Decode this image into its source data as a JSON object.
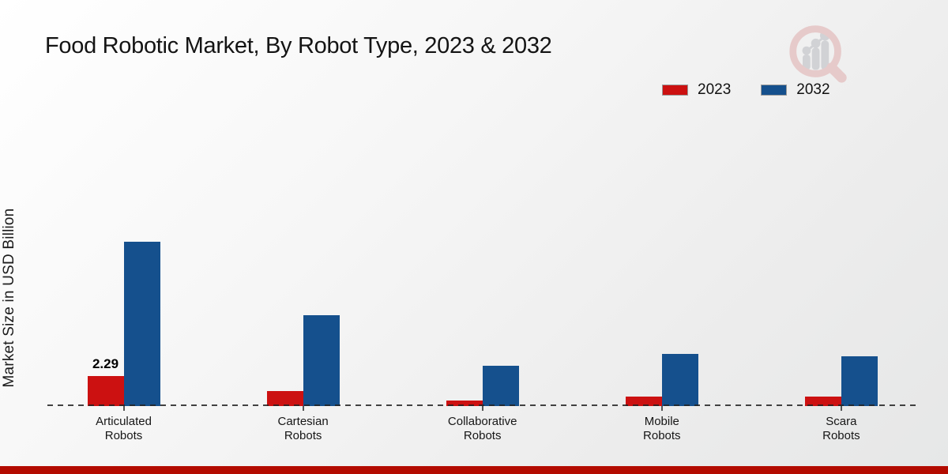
{
  "page": {
    "title": "Food Robotic Market, By Robot Type, 2023 & 2032",
    "ylabel": "Market Size in USD Billion",
    "footer_color": "#b30b00",
    "logo": "market-research-magnifier-growth-logo"
  },
  "colors": {
    "series_2023_red": "#cc1111",
    "series_2032_blue": "#15508d",
    "footer_red": "#b30b00",
    "logo_pink": "#e6c9c9",
    "logo_gray": "#d0d1d4",
    "baseline_dash": "#232323"
  },
  "legend": {
    "position": "top-right",
    "items": [
      {
        "label": "2023",
        "color": "#cc1111"
      },
      {
        "label": "2032",
        "color": "#15508d"
      }
    ]
  },
  "chart_data": {
    "type": "bar",
    "title": "Food Robotic Market, By Robot Type, 2023 & 2032",
    "xlabel": "",
    "ylabel": "Market Size in USD Billion",
    "categories": [
      "Articulated Robots",
      "Cartesian Robots",
      "Collaborative Robots",
      "Mobile Robots",
      "Scara Robots"
    ],
    "category_label_lines": [
      [
        "Articulated",
        "Robots"
      ],
      [
        "Cartesian",
        "Robots"
      ],
      [
        "Collaborative",
        "Robots"
      ],
      [
        "Mobile",
        "Robots"
      ],
      [
        "Scara",
        "Robots"
      ]
    ],
    "series": [
      {
        "name": "2023",
        "color": "#cc1111",
        "values": [
          2.29,
          1.15,
          0.4,
          0.72,
          0.7
        ]
      },
      {
        "name": "2032",
        "color": "#15508d",
        "values": [
          12.5,
          6.9,
          3.1,
          3.95,
          3.8
        ]
      }
    ],
    "data_labels": [
      "2.29",
      "",
      "",
      "",
      ""
    ],
    "data_label_series": "2023",
    "ylim": [
      0,
      14
    ],
    "y_axis_ticks_visible": false,
    "grid": false,
    "baseline_style": "dashed",
    "legend_position": "top-right"
  }
}
